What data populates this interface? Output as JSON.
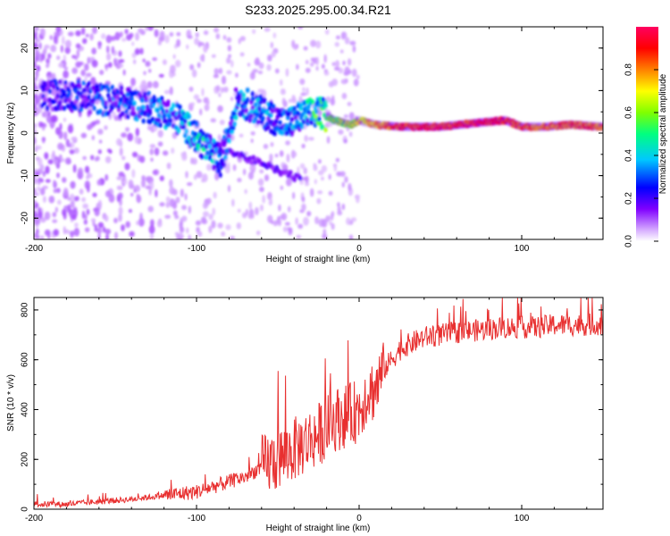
{
  "title": "S233.2025.295.00.34.R21",
  "chart_data": [
    {
      "type": "heatmap",
      "name": "spectrogram",
      "xlabel": "Height of straight line (km)",
      "ylabel": "Frequency (Hz)",
      "xlim": [
        -200,
        150
      ],
      "ylim": [
        -25,
        25
      ],
      "xticks": [
        -200,
        -100,
        0,
        100
      ],
      "xtick_labels": [
        "-200",
        "-100",
        "0",
        "100"
      ],
      "yticks": [
        -20,
        -10,
        0,
        10,
        20
      ],
      "ytick_labels": [
        "-20",
        "-10",
        "0",
        "10",
        "20"
      ],
      "colorbar": {
        "label": "Normalized spectral amplitude",
        "range": [
          0,
          1
        ],
        "ticks": [
          0.0,
          0.2,
          0.4,
          0.6,
          0.8
        ],
        "tick_labels": [
          "0.0",
          "0.2",
          "0.4",
          "0.6",
          "0.8"
        ],
        "colors": [
          "#ffffff",
          "#d8b0ff",
          "#8000ff",
          "#0000ff",
          "#00c8ff",
          "#00ff80",
          "#80ff00",
          "#ffff00",
          "#ff8000",
          "#ff0000",
          "#ff0060"
        ]
      },
      "ridge": {
        "x": [
          -180,
          -160,
          -140,
          -120,
          -110,
          -100,
          -90,
          -85,
          -75,
          -60,
          -45,
          -35,
          -25,
          -15,
          -5,
          0,
          10,
          25,
          50,
          75,
          90,
          100,
          115,
          130,
          150
        ],
        "freq": [
          9,
          8,
          7,
          5,
          3,
          -1,
          -5,
          -7,
          8,
          5,
          2,
          4,
          5,
          3,
          2,
          3,
          2,
          1.5,
          1.5,
          2.5,
          3,
          1.5,
          1.5,
          2,
          1.5
        ],
        "amplitude": [
          0.25,
          0.3,
          0.3,
          0.35,
          0.35,
          0.45,
          0.4,
          0.3,
          0.35,
          0.35,
          0.3,
          0.4,
          0.55,
          0.6,
          0.65,
          0.7,
          0.8,
          0.9,
          0.95,
          0.95,
          0.95,
          0.9,
          0.85,
          0.9,
          0.85
        ]
      }
    },
    {
      "type": "line",
      "name": "snr",
      "xlabel": "Height of straight line (km)",
      "ylabel": "SNR (10 * v/v)",
      "xlim": [
        -200,
        150
      ],
      "ylim": [
        0,
        850
      ],
      "xticks": [
        -200,
        -100,
        0,
        100
      ],
      "xtick_labels": [
        "-200",
        "-100",
        "0",
        "100"
      ],
      "yticks": [
        0,
        200,
        400,
        600,
        800
      ],
      "ytick_labels": [
        "0",
        "200",
        "400",
        "600",
        "800"
      ],
      "color": "#e83030",
      "series": [
        {
          "name": "SNR",
          "x": [
            -200,
            -180,
            -160,
            -140,
            -120,
            -100,
            -90,
            -80,
            -70,
            -60,
            -50,
            -40,
            -30,
            -25,
            -20,
            -15,
            -10,
            -5,
            0,
            5,
            10,
            15,
            20,
            25,
            30,
            40,
            50,
            60,
            75,
            90,
            100,
            110,
            120,
            130,
            140,
            150
          ],
          "values": [
            20,
            20,
            30,
            40,
            55,
            70,
            90,
            110,
            130,
            170,
            200,
            240,
            280,
            300,
            330,
            360,
            370,
            380,
            400,
            470,
            480,
            560,
            600,
            640,
            660,
            690,
            700,
            710,
            720,
            730,
            730,
            730,
            740,
            740,
            740,
            745
          ]
        }
      ]
    }
  ]
}
